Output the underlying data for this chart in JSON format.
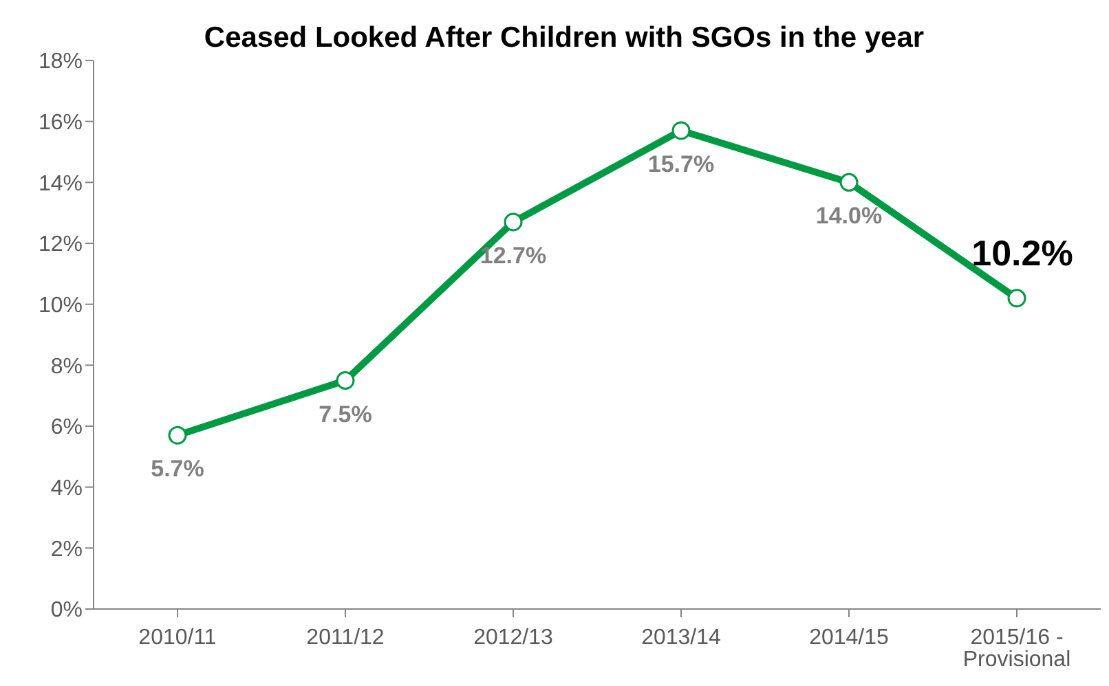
{
  "chart_data": {
    "type": "line",
    "title": "Ceased Looked After Children with SGOs in the year",
    "categories": [
      "2010/11",
      "2011/12",
      "2012/13",
      "2013/14",
      "2014/15",
      "2015/16 - Provisional"
    ],
    "series": [
      {
        "color": "#009a44",
        "values": [
          5.7,
          7.5,
          12.7,
          15.7,
          14.0,
          10.2
        ]
      }
    ],
    "value_labels": [
      "5.7%",
      "7.5%",
      "12.7%",
      "15.7%",
      "14.0%",
      "10.2%"
    ],
    "ylim": [
      0,
      18
    ],
    "yticks": [
      {
        "value": 0,
        "label": "0%"
      },
      {
        "value": 2,
        "label": "2%"
      },
      {
        "value": 4,
        "label": "4%"
      },
      {
        "value": 6,
        "label": "6%"
      },
      {
        "value": 8,
        "label": "8%"
      },
      {
        "value": 10,
        "label": "10%"
      },
      {
        "value": 12,
        "label": "12%"
      },
      {
        "value": 14,
        "label": "14%"
      },
      {
        "value": 16,
        "label": "16%"
      },
      {
        "value": 18,
        "label": "18%"
      }
    ],
    "grid": false,
    "legend": false,
    "marker": "circle",
    "line_style": "solid"
  }
}
